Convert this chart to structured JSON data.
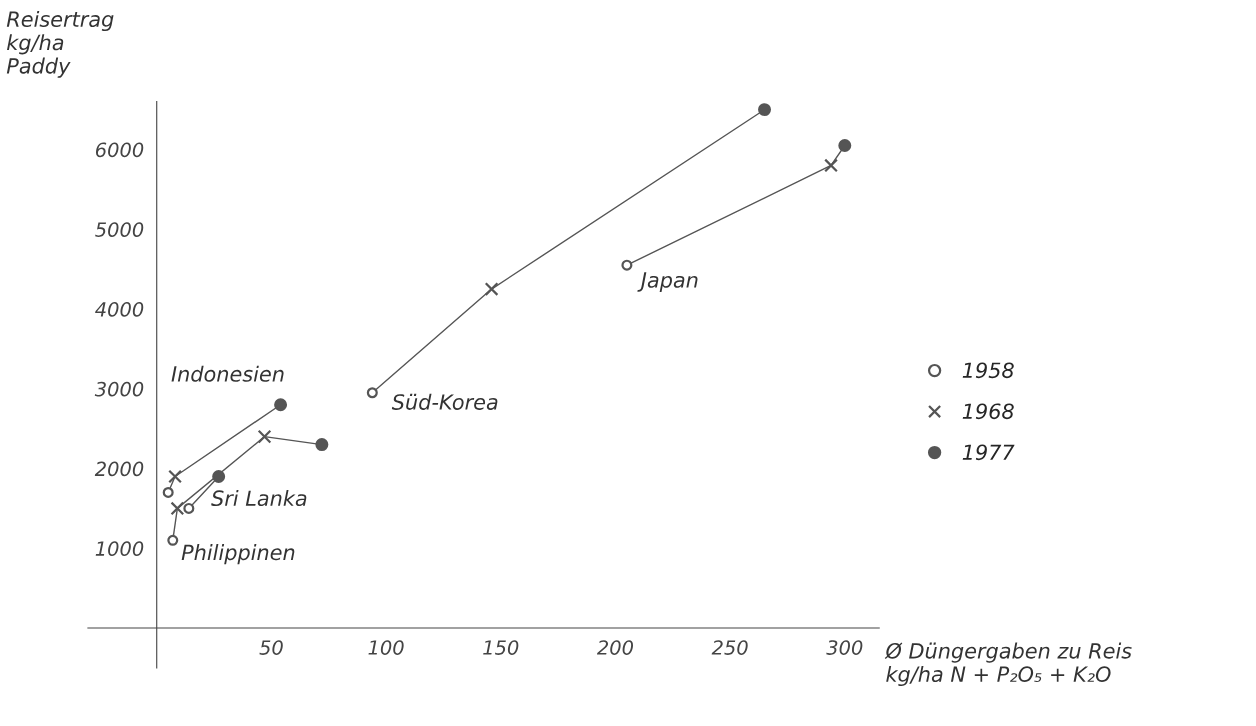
{
  "chart_data": {
    "type": "line",
    "ylabel": "Reisertrag\nkg/ha\nPaddy",
    "xlabel": "Ø Düngergaben zu Reis\nkg/ha N + P₂O₅ + K₂O",
    "xlim": [
      -30,
      315
    ],
    "ylim": [
      -500,
      6600
    ],
    "xticks": [
      50,
      100,
      150,
      200,
      250,
      300
    ],
    "yticks": [
      1000,
      2000,
      3000,
      4000,
      5000,
      6000
    ],
    "grid": false,
    "legend": "right",
    "series": [
      {
        "name": "Japan",
        "color": "#555555",
        "x": [
          205,
          294,
          300
        ],
        "values": [
          4550,
          5800,
          6050
        ]
      },
      {
        "name": "Süd-Korea",
        "color": "#555555",
        "x": [
          94,
          146,
          265
        ],
        "values": [
          2950,
          4250,
          6500
        ]
      },
      {
        "name": "Indonesien",
        "color": "#555555",
        "x": [
          5,
          8,
          54
        ],
        "values": [
          1700,
          1900,
          2800
        ]
      },
      {
        "name": "Sri Lanka",
        "color": "#555555",
        "x": [
          14,
          27
        ],
        "values": [
          1500,
          1900
        ]
      },
      {
        "name": "Philippinen",
        "color": "#555555",
        "x": [
          7,
          9,
          47,
          72
        ],
        "values": [
          1100,
          1500,
          2400,
          2300
        ]
      },
      {
        "name": "1958",
        "type": "scatter",
        "marker": "circle",
        "color": "#555555",
        "x": [
          205,
          94,
          5,
          14,
          7
        ],
        "values": [
          4550,
          2950,
          1700,
          1500,
          1100
        ]
      },
      {
        "name": "1968",
        "type": "scatter",
        "marker": "cross",
        "color": "#555555",
        "x": [
          294,
          146,
          8,
          9,
          47
        ],
        "values": [
          5800,
          4250,
          1900,
          1500,
          2400
        ]
      },
      {
        "name": "1977",
        "type": "scatter",
        "marker": "dot",
        "color": "#555555",
        "x": [
          300,
          265,
          54,
          27,
          72
        ],
        "values": [
          6050,
          6500,
          2800,
          1900,
          2300
        ]
      }
    ]
  }
}
